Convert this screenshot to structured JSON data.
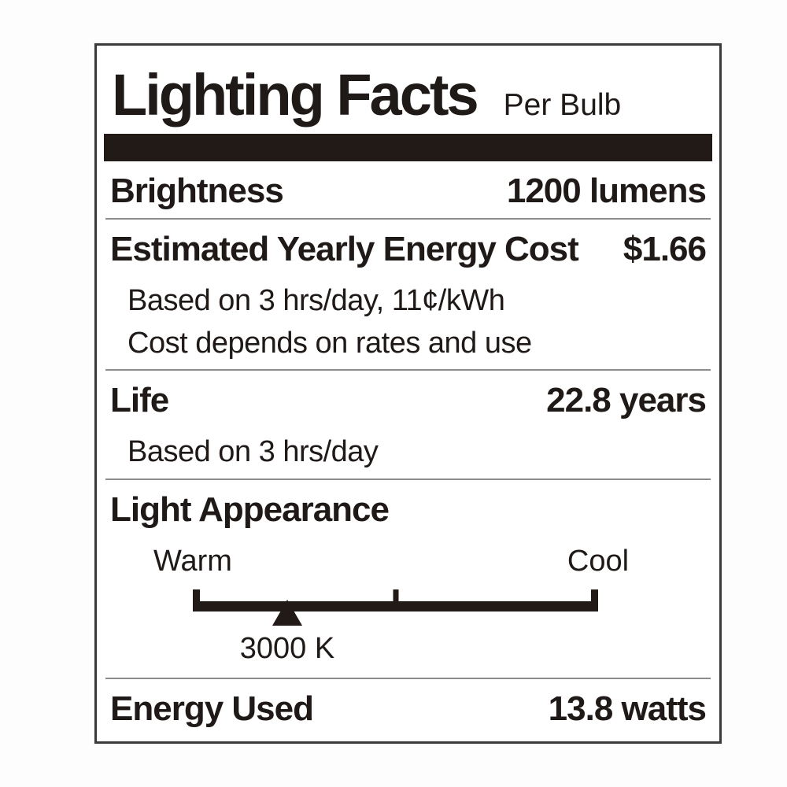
{
  "label": {
    "title": "Lighting Facts",
    "title_suffix": "Per Bulb",
    "brightness": {
      "label": "Brightness",
      "value": "1200 lumens"
    },
    "energy_cost": {
      "label": "Estimated Yearly Energy Cost",
      "value": "$1.66",
      "notes": [
        "Based on 3 hrs/day, 11¢/kWh",
        "Cost depends on rates and use"
      ]
    },
    "life": {
      "label": "Life",
      "value": "22.8 years",
      "notes": [
        "Based on 3 hrs/day"
      ]
    },
    "light_appearance": {
      "label": "Light Appearance",
      "scale": {
        "warm_label": "Warm",
        "cool_label": "Cool",
        "marker_value": "3000 K",
        "marker_position_pct": 23.3
      }
    },
    "energy_used": {
      "label": "Energy Used",
      "value": "13.8 watts"
    },
    "colors": {
      "ink": "#211a16",
      "divider": "#8c8c8c",
      "border": "#3b3b3b",
      "background": "#ffffff"
    }
  }
}
